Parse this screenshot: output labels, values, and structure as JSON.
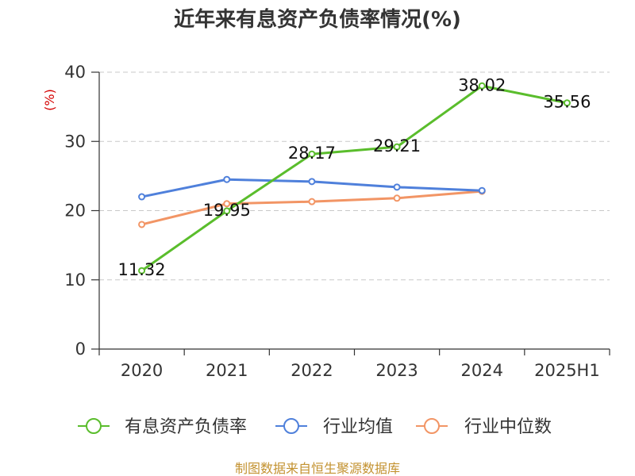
{
  "footer": "制图数据来自恒生聚源数据库",
  "colors": {
    "title": "#333333",
    "ylabel": "#d40000",
    "footer": "#c39230",
    "grid": "#c8c8c8"
  },
  "chart_data": {
    "type": "line",
    "title": "近年来有息资产负债率情况(%)",
    "xlabel": "",
    "ylabel": "(%)",
    "categories": [
      "2020",
      "2021",
      "2022",
      "2023",
      "2024",
      "2025H1"
    ],
    "ylim": [
      0,
      40
    ],
    "yticks": [
      0,
      10,
      20,
      30,
      40
    ],
    "grid": true,
    "legend_position": "bottom",
    "series": [
      {
        "name": "有息资产负债率",
        "color": "#5abd2c",
        "values": [
          11.32,
          19.95,
          28.17,
          29.21,
          38.02,
          35.56
        ],
        "show_data_labels": true
      },
      {
        "name": "行业均值",
        "color": "#4f80db",
        "values": [
          22.0,
          24.5,
          24.2,
          23.4,
          22.9,
          null
        ],
        "show_data_labels": false
      },
      {
        "name": "行业中位数",
        "color": "#f29565",
        "values": [
          18.0,
          21.0,
          21.3,
          21.8,
          22.8,
          null
        ],
        "show_data_labels": false
      }
    ]
  }
}
